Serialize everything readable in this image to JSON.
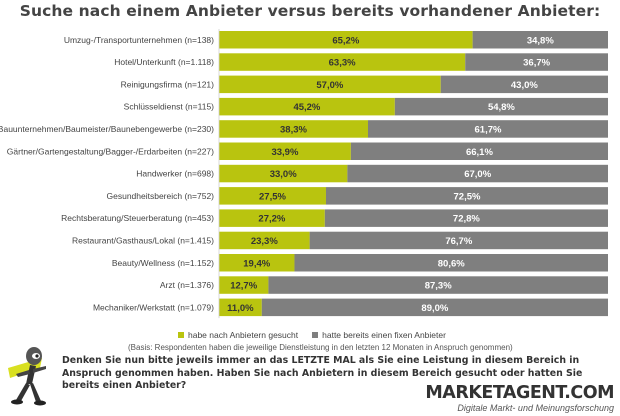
{
  "colors": {
    "searched": "#b9c40f",
    "existing": "#7f7f7f"
  },
  "chart_data": {
    "type": "bar",
    "orientation": "horizontal-stacked-100",
    "title": "Suche nach einem Anbieter versus bereits vorhandener Anbieter:",
    "categories": [
      "Umzug-/Transportunternehmen (n=138)",
      "Hotel/Unterkunft (n=1.118)",
      "Reinigungsfirma (n=121)",
      "Schlüsseldienst (n=115)",
      "Bauunternehmen/Baumeister/Baunebengewerbe (n=230)",
      "Gärtner/Gartengestaltung/Bagger-/Erdarbeiten (n=227)",
      "Handwerker (n=698)",
      "Gesundheitsbereich (n=752)",
      "Rechtsberatung/Steuerberatung (n=453)",
      "Restaurant/Gasthaus/Lokal (n=1.415)",
      "Beauty/Wellness (n=1.152)",
      "Arzt (n=1.376)",
      "Mechaniker/Werkstatt (n=1.079)"
    ],
    "series": [
      {
        "name": "habe nach Anbietern gesucht",
        "values": [
          65.2,
          63.3,
          57.0,
          45.2,
          38.3,
          33.9,
          33.0,
          27.5,
          27.2,
          23.3,
          19.4,
          12.7,
          11.0
        ],
        "labels": [
          "65,2%",
          "63,3%",
          "57,0%",
          "45,2%",
          "38,3%",
          "33,9%",
          "33,0%",
          "27,5%",
          "27,2%",
          "23,3%",
          "19,4%",
          "12,7%",
          "11,0%"
        ]
      },
      {
        "name": "hatte bereits einen fixen Anbieter",
        "values": [
          34.8,
          36.7,
          43.0,
          54.8,
          61.7,
          66.1,
          67.0,
          72.5,
          72.8,
          76.7,
          80.6,
          87.3,
          89.0
        ],
        "labels": [
          "34,8%",
          "36,7%",
          "43,0%",
          "54,8%",
          "61,7%",
          "66,1%",
          "67,0%",
          "72,5%",
          "72,8%",
          "76,7%",
          "80,6%",
          "87,3%",
          "89,0%"
        ]
      }
    ],
    "xlim": [
      0,
      100
    ],
    "legend_position": "bottom"
  },
  "basis_note": "(Basis: Respondenten haben die jeweilige Dienstleistung in den letzten 12 Monaten in Anspruch genommen)",
  "question": "Denken Sie nun bitte jeweils immer an das LETZTE MAL als Sie eine Leistung in diesem Bereich in Anspruch genommen haben. Haben Sie nach Anbietern in diesem Bereich gesucht oder hatten Sie bereits einen Anbieter?",
  "brand": {
    "name": "MARKETAGENT.COM",
    "tagline": "Digitale Markt- und Meinungsforschung"
  },
  "mascot_icon": "running-mascot-icon"
}
